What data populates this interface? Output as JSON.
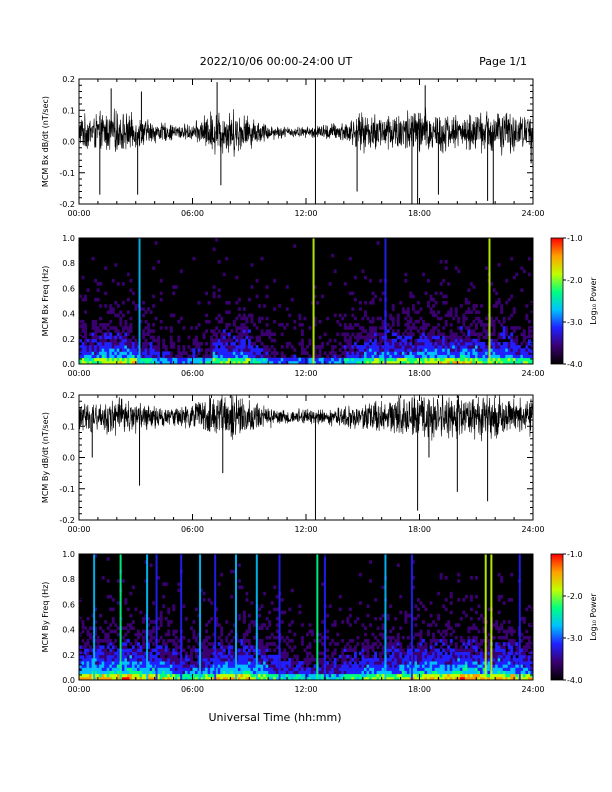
{
  "header": {
    "title": "2022/10/06  00:00-24:00 UT",
    "page": "Page 1/1"
  },
  "footer": {
    "xlabel": "Universal Time (hh:mm)"
  },
  "colorbar": {
    "label": "Log₁₀ Power",
    "ticks": [
      "-1.0",
      "-2.0",
      "-3.0",
      "-4.0"
    ],
    "range": [
      -4.0,
      -1.0
    ],
    "colormap": [
      "#000000",
      "#3a0070",
      "#2020ff",
      "#00c0ff",
      "#00ff80",
      "#c0ff00",
      "#ffa000",
      "#ff0000"
    ]
  },
  "chart_data": [
    {
      "type": "line",
      "ylabel": "MCM Bx dB/dt (nT/sec)",
      "x_unit": "hours UT",
      "xlim": [
        0,
        24
      ],
      "ylim": [
        -0.2,
        0.2
      ],
      "xticks": [
        "00:00",
        "06:00",
        "12:00",
        "18:00",
        "24:00"
      ],
      "yticks": [
        "0.2",
        "0.1",
        "0.0",
        "-0.1",
        "-0.2"
      ],
      "baseline": 0.03,
      "envelope": {
        "x": [
          0,
          1,
          2,
          3,
          4,
          5,
          6,
          7,
          8,
          9,
          10,
          11,
          12,
          13,
          14,
          15,
          16,
          17,
          18,
          19,
          20,
          21,
          22,
          23,
          24
        ],
        "amplitude": [
          0.06,
          0.07,
          0.08,
          0.06,
          0.04,
          0.03,
          0.03,
          0.08,
          0.09,
          0.06,
          0.03,
          0.02,
          0.02,
          0.03,
          0.04,
          0.07,
          0.07,
          0.08,
          0.09,
          0.08,
          0.06,
          0.07,
          0.09,
          0.07,
          0.06
        ]
      },
      "spikes": [
        {
          "t": 1.1,
          "v": -0.17
        },
        {
          "t": 1.7,
          "v": 0.17
        },
        {
          "t": 3.1,
          "v": -0.17
        },
        {
          "t": 3.3,
          "v": 0.16
        },
        {
          "t": 7.5,
          "v": -0.14
        },
        {
          "t": 7.3,
          "v": 0.19
        },
        {
          "t": 12.5,
          "v": 0.21
        },
        {
          "t": 12.5,
          "v": -0.21
        },
        {
          "t": 14.7,
          "v": -0.16
        },
        {
          "t": 17.6,
          "v": -0.2
        },
        {
          "t": 17.9,
          "v": -0.2
        },
        {
          "t": 18.3,
          "v": 0.18
        },
        {
          "t": 19.0,
          "v": -0.17
        },
        {
          "t": 21.6,
          "v": -0.19
        },
        {
          "t": 21.9,
          "v": -0.21
        },
        {
          "t": 23.9,
          "v": -0.07
        }
      ]
    },
    {
      "type": "heatmap",
      "ylabel": "MCM Bx Freq (Hz)",
      "xlim": [
        0,
        24
      ],
      "ylim": [
        0.0,
        1.0
      ],
      "xticks": [
        "00:00",
        "06:00",
        "12:00",
        "18:00",
        "24:00"
      ],
      "yticks": [
        "1.0",
        "0.8",
        "0.6",
        "0.4",
        "0.2",
        "0.0"
      ],
      "activity": [
        0.6,
        0.7,
        0.7,
        0.5,
        0.3,
        0.2,
        0.3,
        0.6,
        0.6,
        0.4,
        0.2,
        0.2,
        0.2,
        0.2,
        0.4,
        0.6,
        0.6,
        0.6,
        0.7,
        0.7,
        0.7,
        0.6,
        0.6,
        0.5
      ],
      "vertical_lines": [
        {
          "t": 3.2,
          "level": -2.6
        },
        {
          "t": 12.4,
          "level": -1.7
        },
        {
          "t": 16.2,
          "level": -3.0
        },
        {
          "t": 21.7,
          "level": -1.9
        }
      ]
    },
    {
      "type": "line",
      "ylabel": "MCM By dB/dt (nT/sec)",
      "x_unit": "hours UT",
      "xlim": [
        0,
        24
      ],
      "ylim": [
        -0.2,
        0.2
      ],
      "xticks": [
        "00:00",
        "06:00",
        "12:00",
        "18:00",
        "24:00"
      ],
      "yticks": [
        "0.2",
        "0.1",
        "0.0",
        "-0.1",
        "-0.2"
      ],
      "baseline": 0.13,
      "envelope": {
        "x": [
          0,
          1,
          2,
          3,
          4,
          5,
          6,
          7,
          8,
          9,
          10,
          11,
          12,
          13,
          14,
          15,
          16,
          17,
          18,
          19,
          20,
          21,
          22,
          23,
          24
        ],
        "amplitude": [
          0.05,
          0.06,
          0.07,
          0.06,
          0.04,
          0.03,
          0.05,
          0.08,
          0.09,
          0.06,
          0.04,
          0.03,
          0.03,
          0.03,
          0.04,
          0.05,
          0.06,
          0.07,
          0.09,
          0.09,
          0.08,
          0.08,
          0.09,
          0.07,
          0.07
        ]
      },
      "spikes": [
        {
          "t": 0.7,
          "v": 0.0
        },
        {
          "t": 3.2,
          "v": -0.09
        },
        {
          "t": 7.6,
          "v": -0.05
        },
        {
          "t": 12.5,
          "v": -0.2
        },
        {
          "t": 17.9,
          "v": -0.17
        },
        {
          "t": 20.0,
          "v": -0.11
        },
        {
          "t": 21.6,
          "v": -0.14
        },
        {
          "t": 18.5,
          "v": 0.0
        }
      ]
    },
    {
      "type": "heatmap",
      "ylabel": "MCM By Freq (Hz)",
      "xlim": [
        0,
        24
      ],
      "ylim": [
        0.0,
        1.0
      ],
      "xticks": [
        "00:00",
        "06:00",
        "12:00",
        "18:00",
        "24:00"
      ],
      "yticks": [
        "1.0",
        "0.8",
        "0.6",
        "0.4",
        "0.2",
        "0.0"
      ],
      "activity": [
        0.8,
        0.8,
        0.9,
        0.8,
        0.7,
        0.5,
        0.6,
        0.8,
        0.8,
        0.7,
        0.5,
        0.4,
        0.4,
        0.4,
        0.5,
        0.6,
        0.7,
        0.7,
        0.8,
        0.8,
        0.9,
        0.8,
        0.8,
        0.7
      ],
      "vertical_lines": [
        {
          "t": 0.8,
          "level": -2.9
        },
        {
          "t": 2.2,
          "level": -2.2
        },
        {
          "t": 3.6,
          "level": -2.8
        },
        {
          "t": 4.1,
          "level": -3.1
        },
        {
          "t": 5.4,
          "level": -3.0
        },
        {
          "t": 6.4,
          "level": -2.6
        },
        {
          "t": 7.2,
          "level": -3.1
        },
        {
          "t": 8.3,
          "level": -2.7
        },
        {
          "t": 9.4,
          "level": -2.8
        },
        {
          "t": 10.6,
          "level": -3.2
        },
        {
          "t": 12.6,
          "level": -2.4
        },
        {
          "t": 13.0,
          "level": -3.1
        },
        {
          "t": 16.2,
          "level": -2.9
        },
        {
          "t": 17.6,
          "level": -3.2
        },
        {
          "t": 21.5,
          "level": -2.0
        },
        {
          "t": 21.8,
          "level": -1.9
        },
        {
          "t": 23.3,
          "level": -3.0
        }
      ]
    }
  ]
}
